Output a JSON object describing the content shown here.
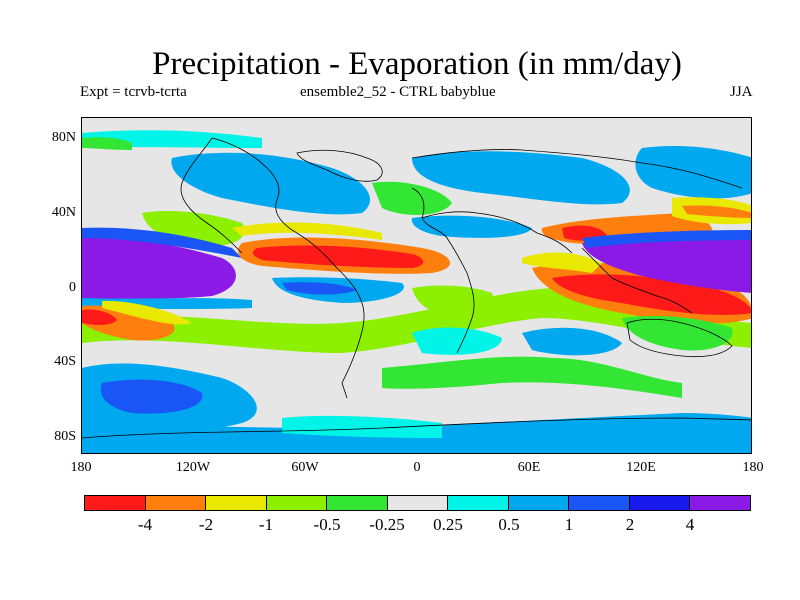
{
  "title": "Precipitation - Evaporation (in mm/day)",
  "subtitle_left": "Expt = tcrvb-tcrta",
  "subtitle_center": "ensemble2_52 - CTRL babyblue",
  "season": "JJA",
  "lat_labels": [
    "80N",
    "40N",
    "0",
    "40S",
    "80S"
  ],
  "lon_labels": [
    "180",
    "120W",
    "60W",
    "0",
    "60E",
    "120E",
    "180"
  ],
  "colorbar": {
    "colors": [
      "#ff1a1a",
      "#ff7f0e",
      "#e8e800",
      "#8cf000",
      "#33e633",
      "#e6e6e6",
      "#00f5e8",
      "#00a8f0",
      "#1a55f5",
      "#1a1aee",
      "#8c1ae6"
    ],
    "tick_labels": [
      "-4",
      "-2",
      "-1",
      "-0.5",
      "-0.25",
      "0.25",
      "0.5",
      "1",
      "2",
      "4"
    ]
  }
}
